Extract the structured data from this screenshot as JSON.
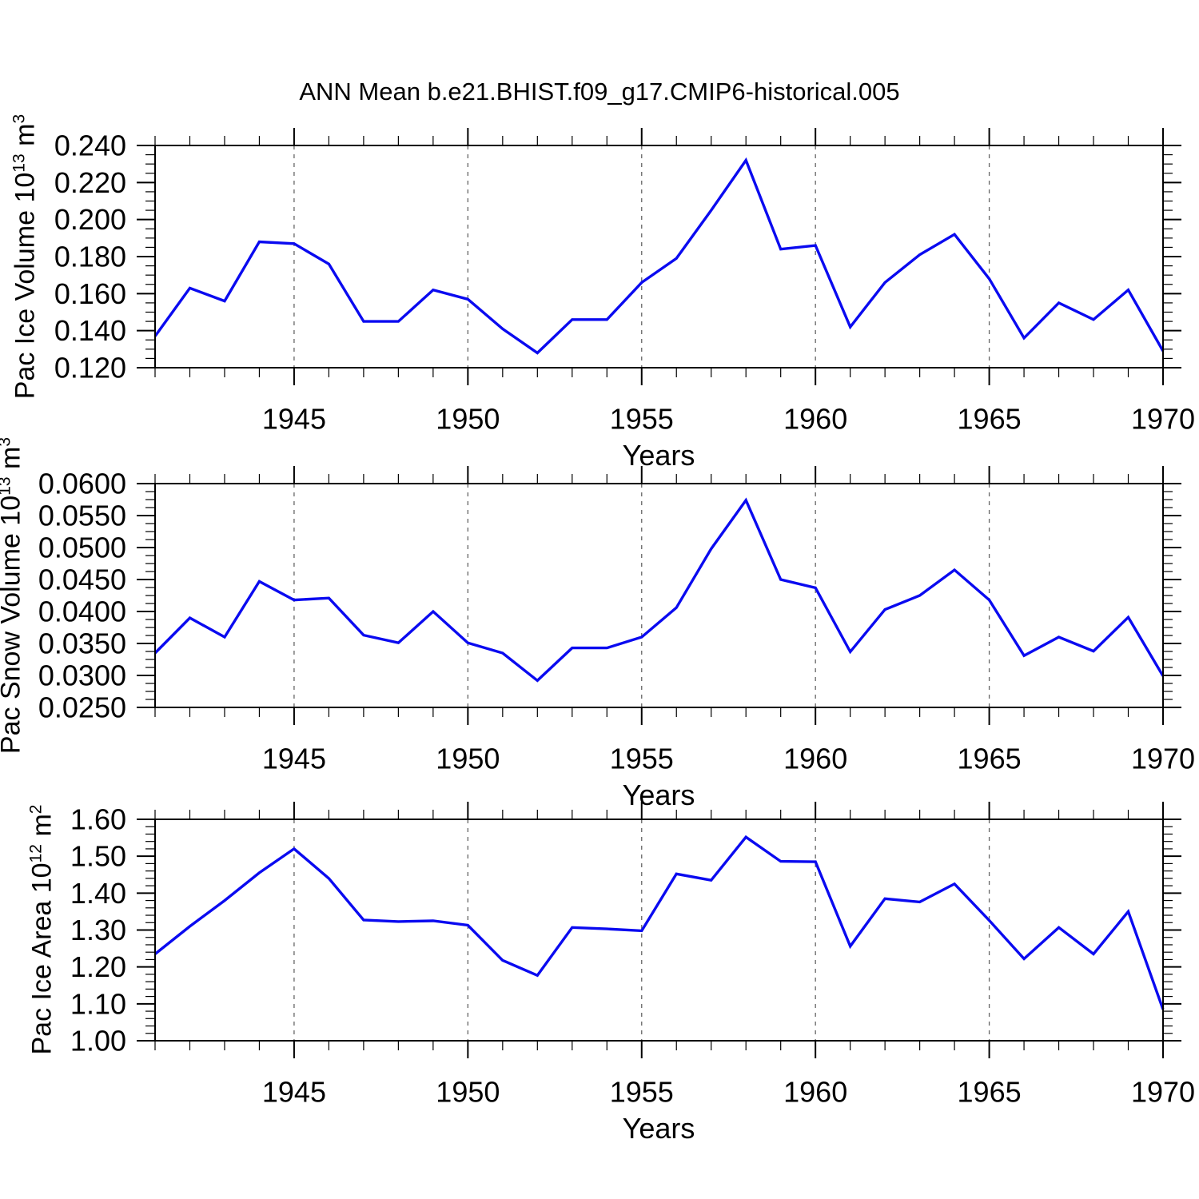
{
  "page": {
    "title": "ANN Mean b.e21.BHIST.f09_g17.CMIP6-historical.005"
  },
  "colors": {
    "line": "#0a0af0",
    "axis": "#000000",
    "grid": "#666666",
    "background": "#ffffff"
  },
  "x_axis": {
    "label": "Years",
    "range": [
      1941,
      1970
    ],
    "major_ticks": [
      1945,
      1950,
      1955,
      1960,
      1965,
      1970
    ],
    "minor_step": 1,
    "grid_years": [
      1945,
      1950,
      1955,
      1960,
      1965
    ]
  },
  "years": [
    1941,
    1942,
    1943,
    1944,
    1945,
    1946,
    1947,
    1948,
    1949,
    1950,
    1951,
    1952,
    1953,
    1954,
    1955,
    1956,
    1957,
    1958,
    1959,
    1960,
    1961,
    1962,
    1963,
    1964,
    1965,
    1966,
    1967,
    1968,
    1969,
    1970
  ],
  "chart_data": [
    {
      "type": "line",
      "name": "pac-ice-volume",
      "ylabel": {
        "text": "Pac Ice Volume 10",
        "exp": "13",
        "unit": " m",
        "unit_exp": "3"
      },
      "ylim": [
        0.12,
        0.24
      ],
      "yticks": [
        "0.240",
        "0.220",
        "0.200",
        "0.180",
        "0.160",
        "0.140",
        "0.120"
      ],
      "ydecimals": 3,
      "yminor_step": 0.005,
      "values": [
        0.137,
        0.163,
        0.156,
        0.188,
        0.187,
        0.176,
        0.145,
        0.145,
        0.162,
        0.157,
        0.141,
        0.128,
        0.146,
        0.146,
        0.166,
        0.179,
        0.205,
        0.232,
        0.184,
        0.186,
        0.142,
        0.166,
        0.181,
        0.192,
        0.168,
        0.136,
        0.155,
        0.146,
        0.162,
        0.129
      ]
    },
    {
      "type": "line",
      "name": "pac-snow-volume",
      "ylabel": {
        "text": "Pac Snow Volume 10",
        "exp": "13",
        "unit": " m",
        "unit_exp": "3"
      },
      "ylim": [
        0.025,
        0.06
      ],
      "yticks": [
        "0.0600",
        "0.0550",
        "0.0500",
        "0.0450",
        "0.0400",
        "0.0350",
        "0.0300",
        "0.0250"
      ],
      "ydecimals": 4,
      "yminor_step": 0.00125,
      "values": [
        0.0335,
        0.039,
        0.036,
        0.0447,
        0.0418,
        0.0421,
        0.0363,
        0.0351,
        0.04,
        0.0351,
        0.0335,
        0.0292,
        0.0343,
        0.0343,
        0.036,
        0.0406,
        0.0498,
        0.0574,
        0.045,
        0.0437,
        0.0337,
        0.0403,
        0.0425,
        0.0465,
        0.0418,
        0.0331,
        0.036,
        0.0338,
        0.0391,
        0.0299
      ]
    },
    {
      "type": "line",
      "name": "pac-ice-area",
      "ylabel": {
        "text": "Pac Ice Area 10",
        "exp": "12",
        "unit": " m",
        "unit_exp": "2"
      },
      "ylim": [
        1.0,
        1.6
      ],
      "yticks": [
        "1.60",
        "1.50",
        "1.40",
        "1.30",
        "1.20",
        "1.10",
        "1.00"
      ],
      "ydecimals": 2,
      "yminor_step": 0.02,
      "values": [
        1.235,
        1.31,
        1.38,
        1.455,
        1.52,
        1.44,
        1.327,
        1.323,
        1.325,
        1.313,
        1.218,
        1.177,
        1.307,
        1.303,
        1.298,
        1.452,
        1.435,
        1.552,
        1.486,
        1.485,
        1.256,
        1.385,
        1.376,
        1.425,
        1.326,
        1.222,
        1.307,
        1.235,
        1.35,
        1.085
      ]
    }
  ]
}
